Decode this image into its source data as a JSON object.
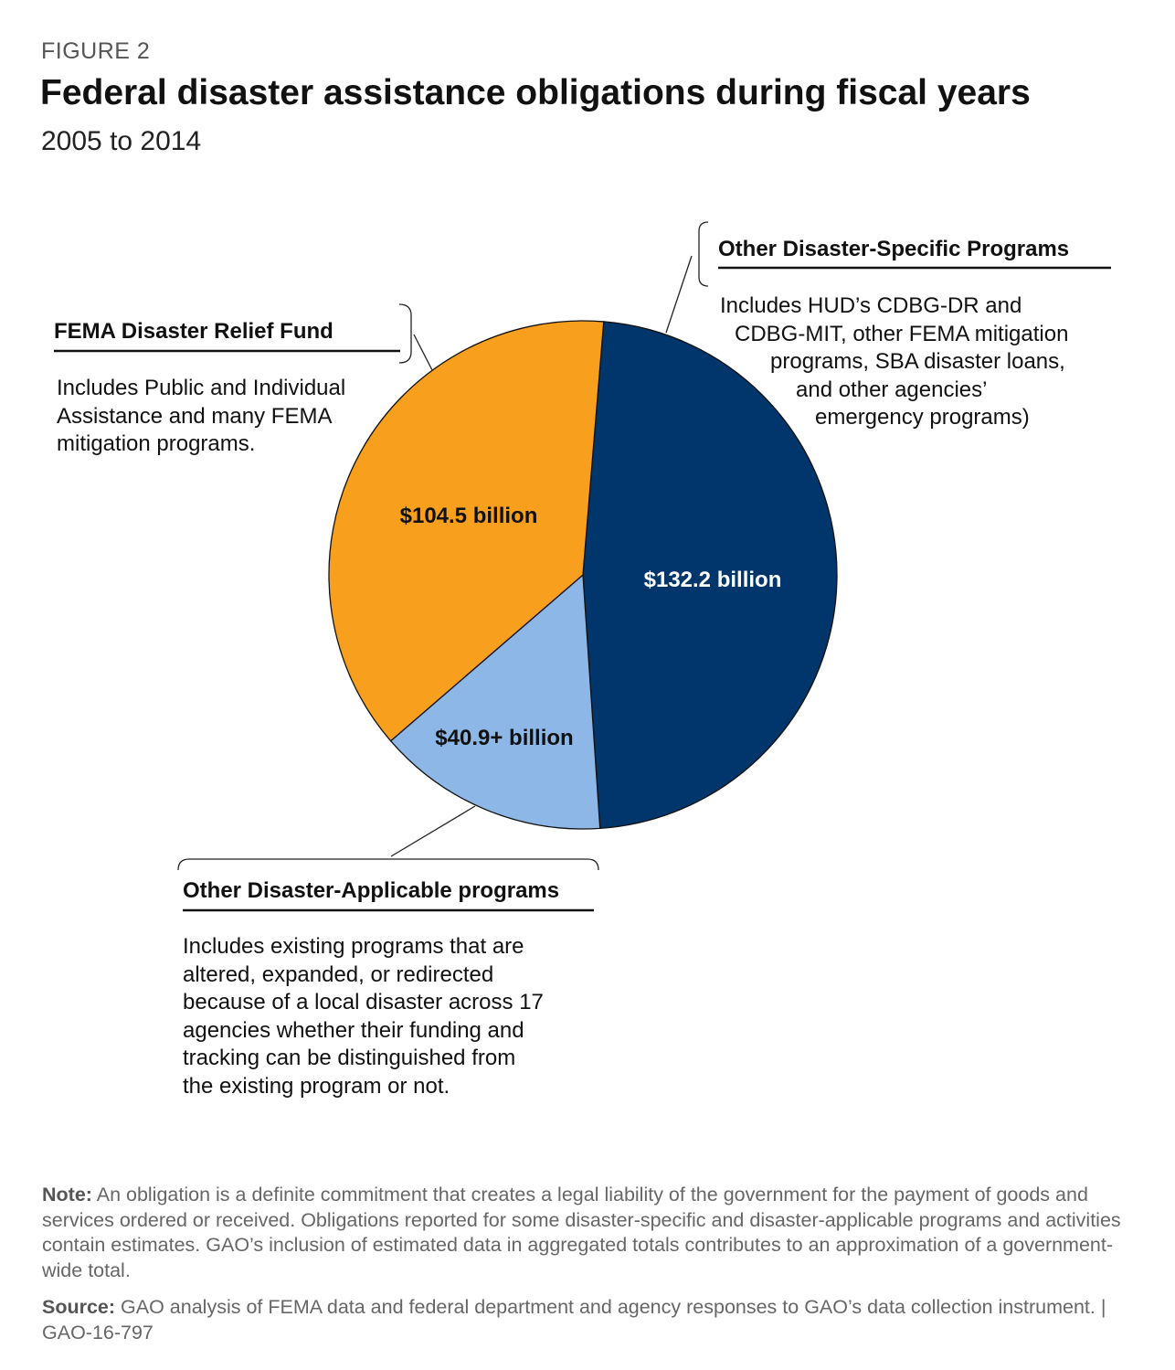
{
  "figure_label": "FIGURE 2",
  "chart_data": {
    "type": "pie",
    "title": "Federal disaster assistance obligations during fiscal years",
    "subtitle": "2005 to 2014",
    "unit": "billion dollars",
    "slices": [
      {
        "name": "Other Disaster-Specific Programs",
        "value": 132.2,
        "label": "$132.2 billion",
        "color": "#00366b",
        "label_color": "#ffffff"
      },
      {
        "name": "Other Disaster-Applicable programs",
        "value": 40.9,
        "label": "$40.9+ billion",
        "color": "#8db7e6",
        "label_color": "#111111"
      },
      {
        "name": "FEMA Disaster Relief Fund",
        "value": 104.5,
        "label": "$104.5 billion",
        "color": "#f99f1e",
        "label_color": "#111111"
      }
    ]
  },
  "callouts": {
    "specific": {
      "title": "Other Disaster-Specific Programs",
      "lines": [
        "Includes HUD’s CDBG-DR and",
        "CDBG-MIT, other FEMA mitigation",
        "programs, SBA disaster loans,",
        "and other agencies’",
        "emergency programs)"
      ]
    },
    "fema": {
      "title": "FEMA Disaster Relief Fund",
      "lines": [
        "Includes Public and Individual",
        "Assistance and many FEMA",
        "mitigation programs."
      ]
    },
    "applicable": {
      "title": "Other Disaster-Applicable programs",
      "lines": [
        "Includes existing programs that are",
        "altered, expanded, or redirected",
        "because of a local disaster across 17",
        "agencies whether their funding and",
        "tracking can be distinguished from",
        "the existing program or not."
      ]
    }
  },
  "note": {
    "label": "Note:",
    "text": " An obligation is a definite commitment that creates a legal liability of the government for the payment of goods and services ordered or received. Obligations reported for some disaster-specific and disaster-applicable programs and activities contain estimates. GAO’s inclusion of estimated data in aggregated totals contributes to an approximation of a government-wide total."
  },
  "source": {
    "label": "Source:",
    "text": " GAO analysis of FEMA data and federal department and agency responses to GAO’s data collection instrument. | GAO-16-797"
  }
}
